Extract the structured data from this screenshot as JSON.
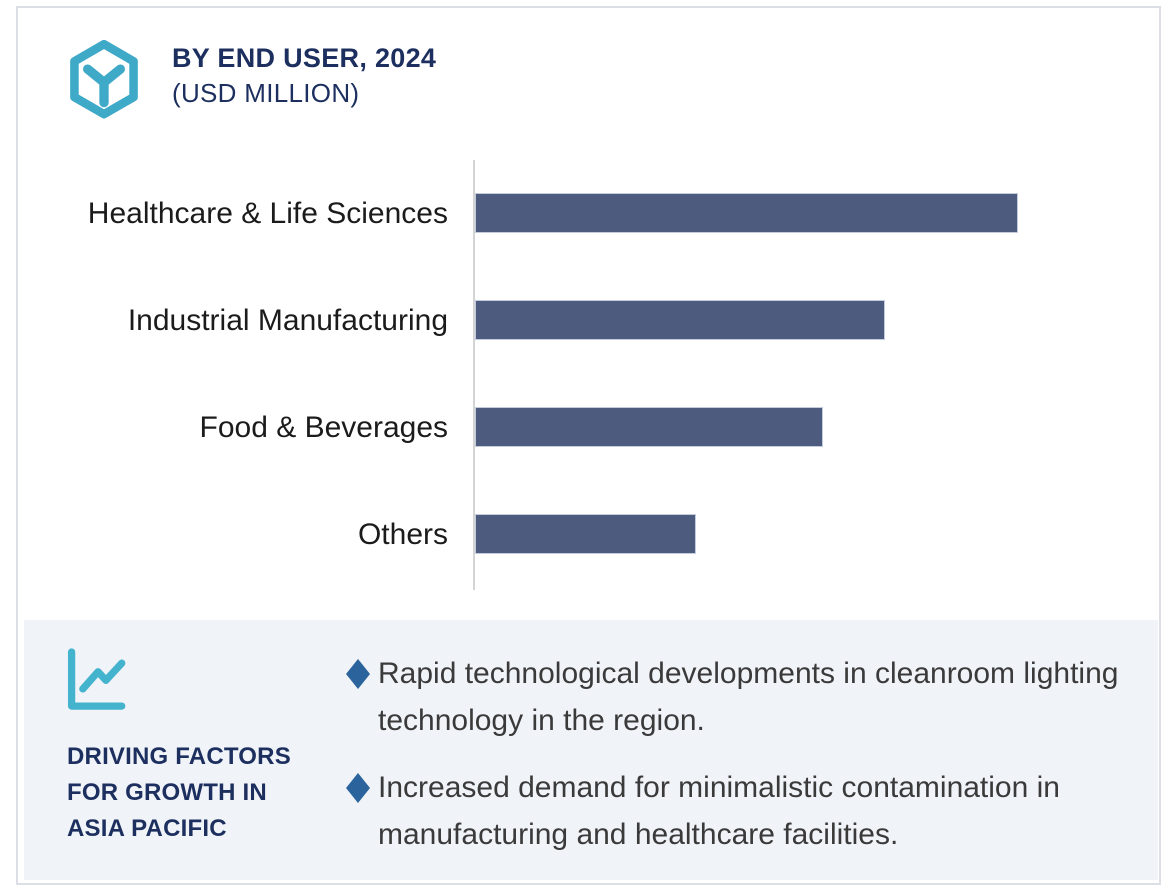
{
  "header": {
    "title_line1": "BY END USER, 2024",
    "title_line2": "(USD MILLION)",
    "icon": "hexagon-cube-icon"
  },
  "chart_data": {
    "type": "bar",
    "orientation": "horizontal",
    "title": "BY END USER, 2024 (USD MILLION)",
    "unit": "USD Million",
    "categories": [
      "Healthcare & Life Sciences",
      "Industrial Manufacturing",
      "Food & Beverages",
      "Others"
    ],
    "values": [
      100,
      75.5,
      64.1,
      40.8
    ],
    "value_scale": "relative, longest bar = 100; no numeric axis tick labels shown",
    "xlim": [
      0,
      126
    ],
    "grid": false,
    "legend": false,
    "bar_color": "#4c5b7e"
  },
  "panel": {
    "icon": "line-chart-icon",
    "heading_lines": [
      "DRIVING FACTORS",
      "FOR GROWTH IN",
      "ASIA PACIFIC"
    ],
    "bullet_marker": "diamond",
    "bullets": [
      "Rapid technological developments in cleanroom lighting technology in the region.",
      "Increased demand for minimalistic contamination in manufacturing and healthcare facilities."
    ]
  },
  "colors": {
    "accent_teal": "#3fa9c8",
    "navy": "#1c2f5e",
    "bar_fill": "#4c5b7e",
    "diamond_blue": "#2b649c",
    "panel_bg": "#f0f3f8",
    "axis_gray": "#d4d4d4"
  }
}
